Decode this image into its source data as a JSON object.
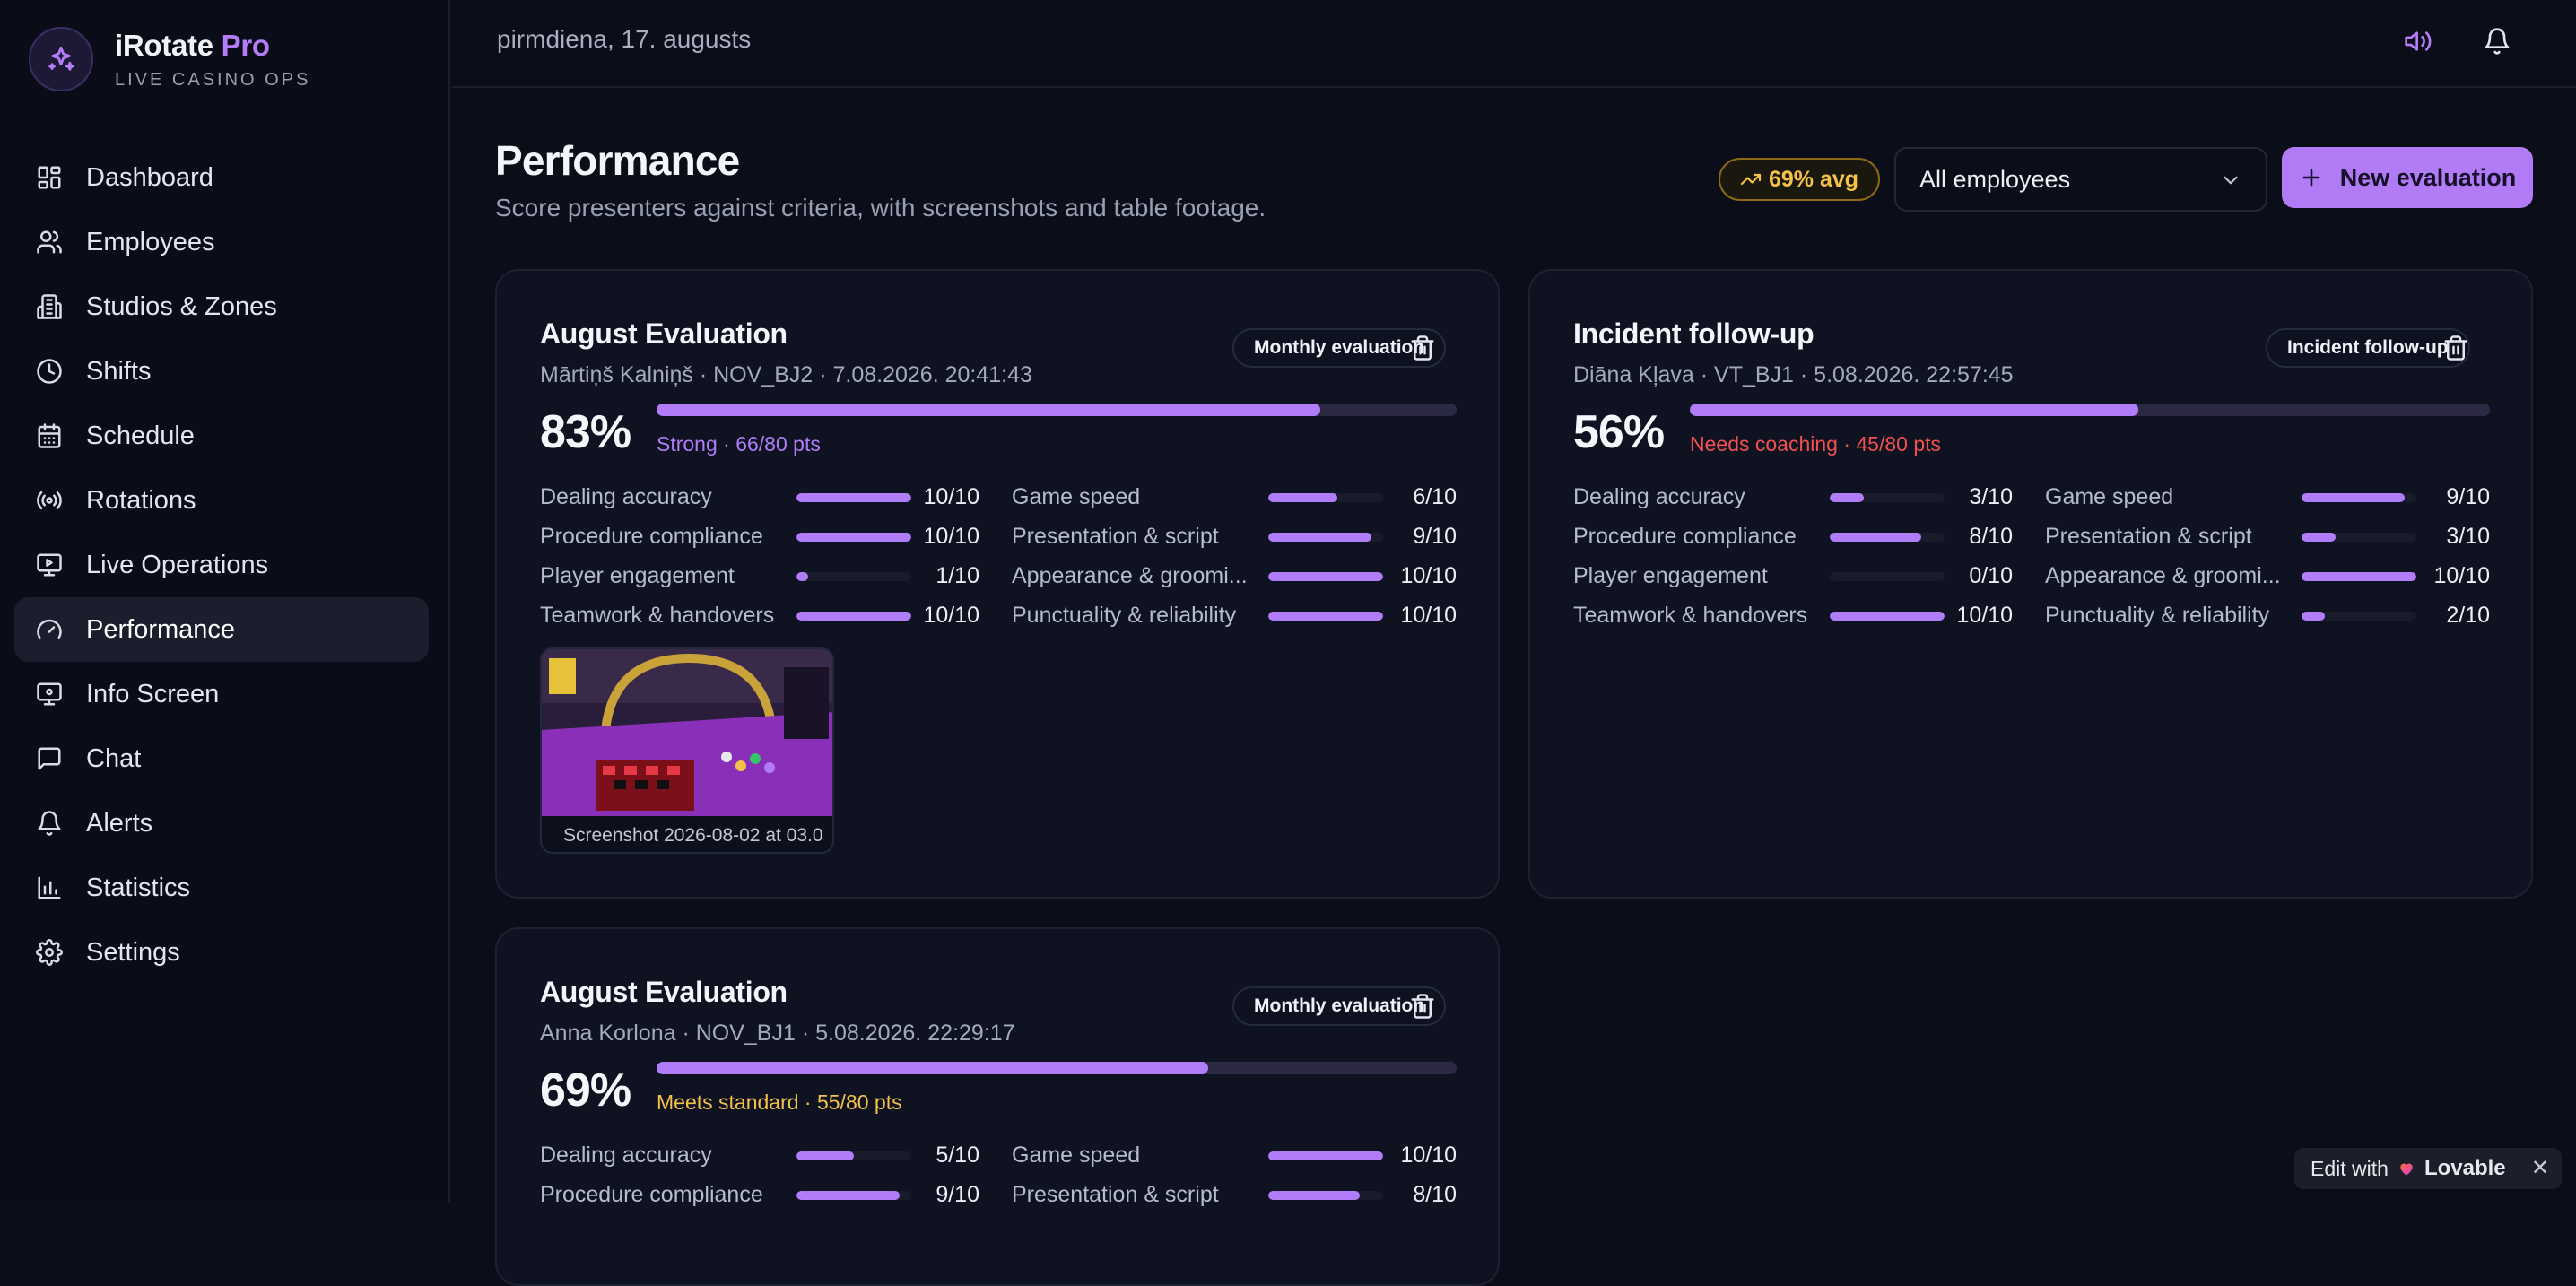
{
  "brand": {
    "name": "iRotate",
    "pro": "Pro",
    "subtitle": "LIVE CASINO OPS"
  },
  "sidebar": {
    "items": [
      {
        "label": "Dashboard",
        "icon": "dashboard-icon"
      },
      {
        "label": "Employees",
        "icon": "users-icon"
      },
      {
        "label": "Studios & Zones",
        "icon": "building-icon"
      },
      {
        "label": "Shifts",
        "icon": "clock-icon"
      },
      {
        "label": "Schedule",
        "icon": "calendar-icon"
      },
      {
        "label": "Rotations",
        "icon": "broadcast-icon"
      },
      {
        "label": "Live Operations",
        "icon": "monitor-play-icon"
      },
      {
        "label": "Performance",
        "icon": "gauge-icon",
        "active": true
      },
      {
        "label": "Info Screen",
        "icon": "monitor-icon"
      },
      {
        "label": "Chat",
        "icon": "chat-icon"
      },
      {
        "label": "Alerts",
        "icon": "bell-icon"
      },
      {
        "label": "Statistics",
        "icon": "bar-chart-icon"
      },
      {
        "label": "Settings",
        "icon": "gear-icon"
      }
    ]
  },
  "topbar": {
    "date": "pirmdiena, 17. augusts"
  },
  "header": {
    "title": "Performance",
    "subtitle": "Score presenters against criteria, with screenshots and table footage.",
    "avg_badge": "69% avg",
    "employee_filter": "All employees",
    "new_button": "New evaluation"
  },
  "evaluations": [
    {
      "title": "August Evaluation",
      "meta": "Mārtiņš Kalniņš · NOV_BJ2 · 7.08.2026. 20:41:43",
      "type": "Monthly evaluation",
      "score": "83%",
      "score_fraction": 0.83,
      "rating": "Strong · 66/80 pts",
      "rating_color": "#b07cf7",
      "criteria_left": [
        {
          "name": "Dealing accuracy",
          "value": "10/10",
          "fraction": 1.0
        },
        {
          "name": "Procedure compliance",
          "value": "10/10",
          "fraction": 1.0
        },
        {
          "name": "Player engagement",
          "value": "1/10",
          "fraction": 0.1
        },
        {
          "name": "Teamwork & handovers",
          "value": "10/10",
          "fraction": 1.0
        }
      ],
      "criteria_right": [
        {
          "name": "Game speed",
          "value": "6/10",
          "fraction": 0.6
        },
        {
          "name": "Presentation & script",
          "value": "9/10",
          "fraction": 0.9
        },
        {
          "name": "Appearance & groomi...",
          "value": "10/10",
          "fraction": 1.0
        },
        {
          "name": "Punctuality & reliability",
          "value": "10/10",
          "fraction": 1.0
        }
      ],
      "screenshot_caption": "Screenshot 2026-08-02 at 03.0"
    },
    {
      "title": "Incident follow-up",
      "meta": "Diāna Kļava · VT_BJ1 · 5.08.2026. 22:57:45",
      "type": "Incident follow-up",
      "score": "56%",
      "score_fraction": 0.56,
      "rating": "Needs coaching · 45/80 pts",
      "rating_color": "#f0504e",
      "criteria_left": [
        {
          "name": "Dealing accuracy",
          "value": "3/10",
          "fraction": 0.3
        },
        {
          "name": "Procedure compliance",
          "value": "8/10",
          "fraction": 0.8
        },
        {
          "name": "Player engagement",
          "value": "0/10",
          "fraction": 0.0
        },
        {
          "name": "Teamwork & handovers",
          "value": "10/10",
          "fraction": 1.0
        }
      ],
      "criteria_right": [
        {
          "name": "Game speed",
          "value": "9/10",
          "fraction": 0.9
        },
        {
          "name": "Presentation & script",
          "value": "3/10",
          "fraction": 0.3
        },
        {
          "name": "Appearance & groomi...",
          "value": "10/10",
          "fraction": 1.0
        },
        {
          "name": "Punctuality & reliability",
          "value": "2/10",
          "fraction": 0.2
        }
      ]
    },
    {
      "title": "August Evaluation",
      "meta": "Anna Korlona · NOV_BJ1 · 5.08.2026. 22:29:17",
      "type": "Monthly evaluation",
      "score": "69%",
      "score_fraction": 0.69,
      "rating": "Meets standard · 55/80 pts",
      "rating_color": "#f4c24a",
      "criteria_left": [
        {
          "name": "Dealing accuracy",
          "value": "5/10",
          "fraction": 0.5
        },
        {
          "name": "Procedure compliance",
          "value": "9/10",
          "fraction": 0.9
        }
      ],
      "criteria_right": [
        {
          "name": "Game speed",
          "value": "10/10",
          "fraction": 1.0
        },
        {
          "name": "Presentation & script",
          "value": "8/10",
          "fraction": 0.8
        }
      ]
    }
  ],
  "lovable": {
    "prefix": "Edit with",
    "brand": "Lovable"
  },
  "colors": {
    "accent": "#b07cf7",
    "background": "#0b0e19",
    "warning": "#f4c24a",
    "danger": "#f0504e"
  }
}
